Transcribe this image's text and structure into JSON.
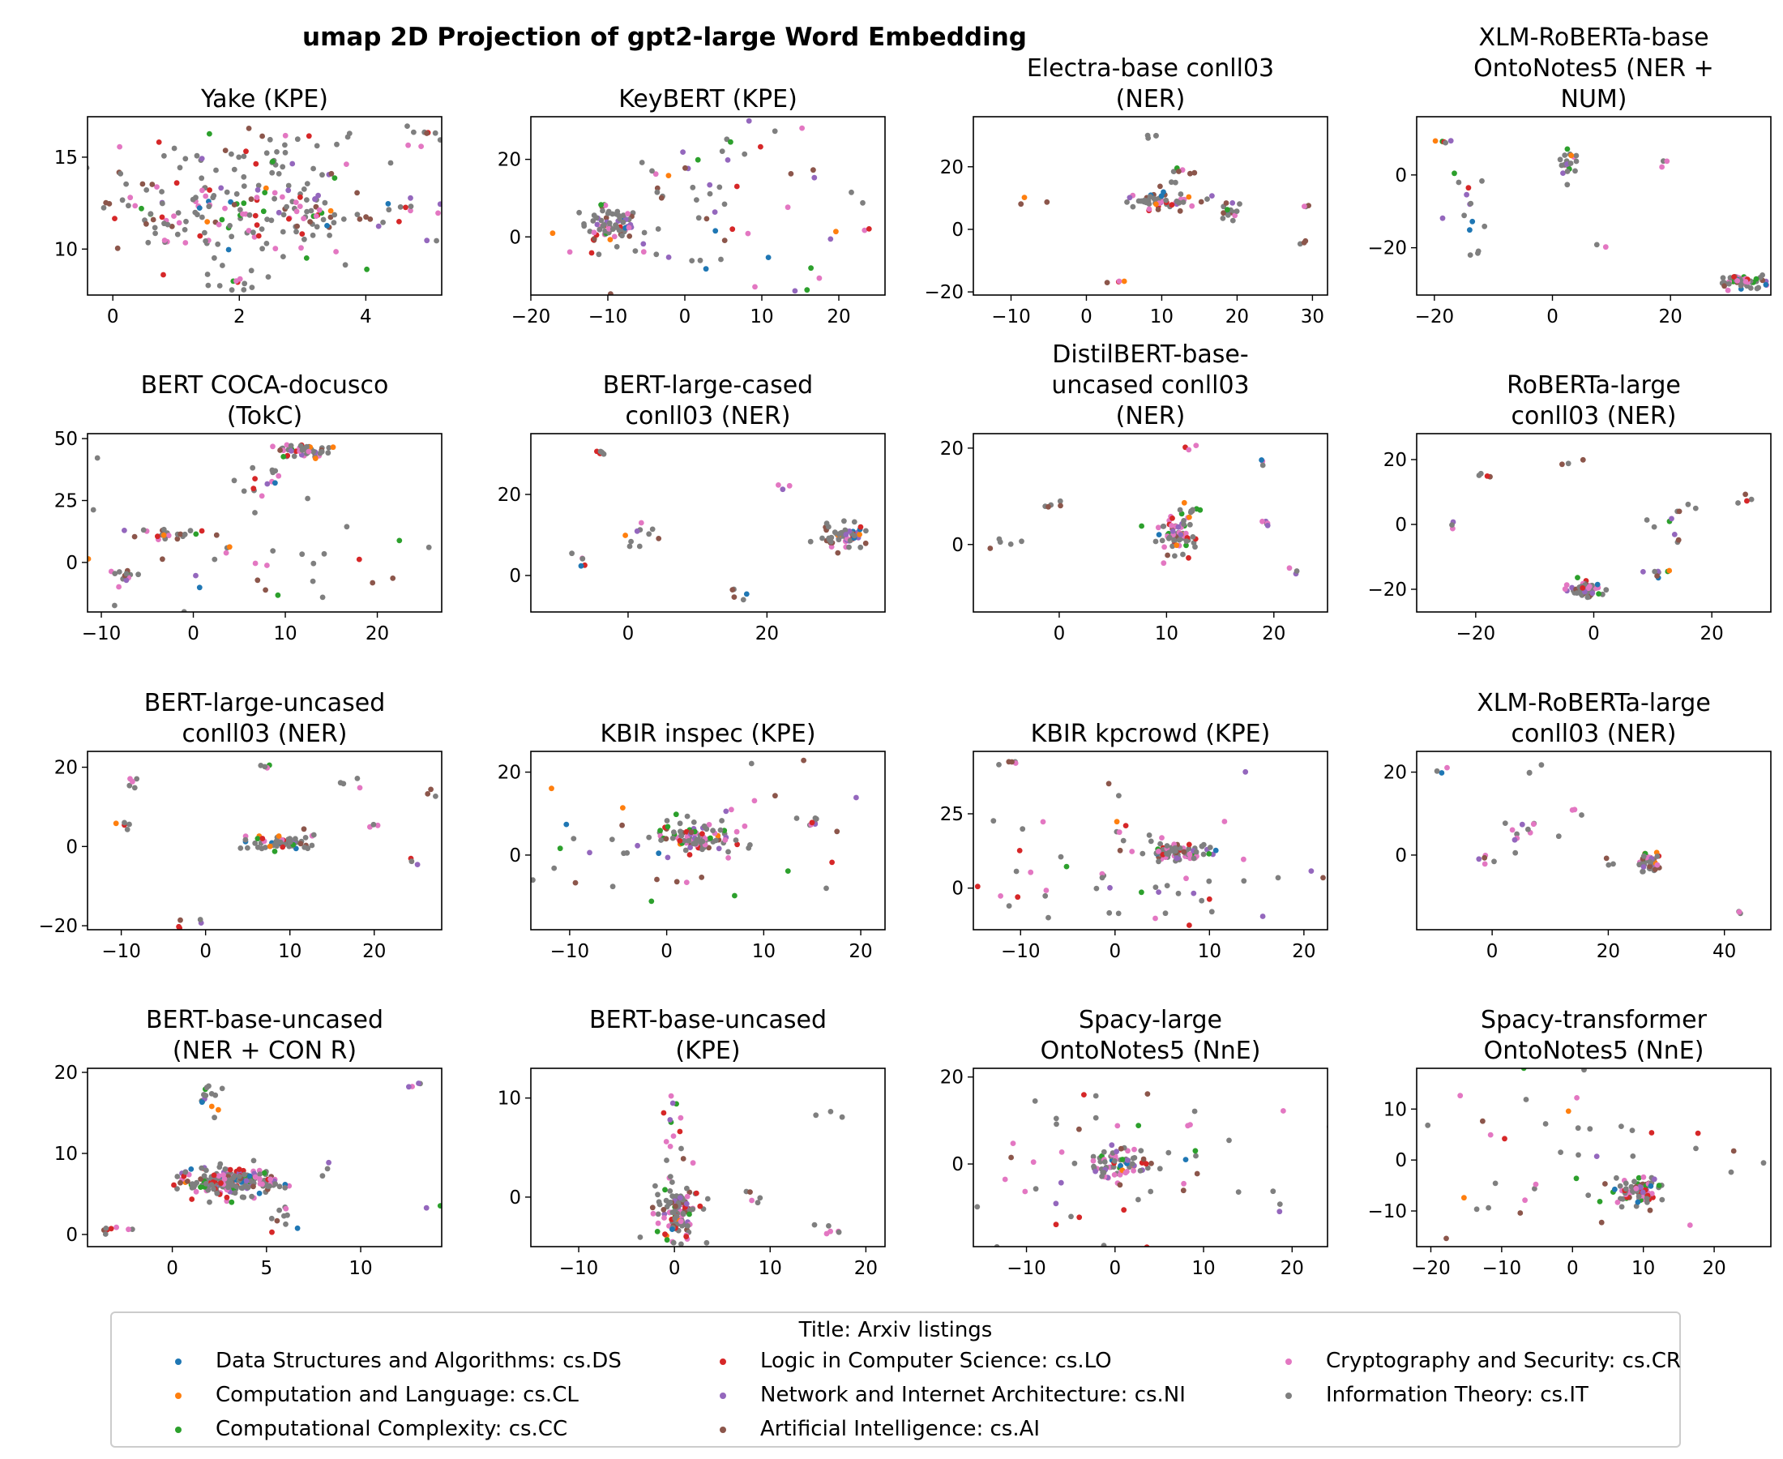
{
  "figure_title": "umap 2D Projection of gpt2-large Word Embedding",
  "legend": {
    "title": "Title: Arxiv listings",
    "items": [
      {
        "label": "Data Structures and Algorithms: cs.DS",
        "color": "#1f77b4"
      },
      {
        "label": "Computation and Language: cs.CL",
        "color": "#ff7f0e"
      },
      {
        "label": "Computational Complexity: cs.CC",
        "color": "#2ca02c"
      },
      {
        "label": "Logic in Computer Science: cs.LO",
        "color": "#d62728"
      },
      {
        "label": "Network and Internet Architecture: cs.NI",
        "color": "#9467bd"
      },
      {
        "label": "Artificial Intelligence: cs.AI",
        "color": "#8c564b"
      },
      {
        "label": "Cryptography and Security: cs.CR",
        "color": "#e377c2"
      },
      {
        "label": "Information Theory: cs.IT",
        "color": "#7f7f7f"
      }
    ]
  },
  "chart_data": [
    {
      "type": "scatter",
      "title": "Yake (KPE)",
      "xlim": [
        -0.4,
        5.2
      ],
      "ylim": [
        7.5,
        17.2
      ],
      "xticks": [
        0,
        2,
        4
      ],
      "yticks": [
        10,
        15
      ],
      "clusters": [
        [
          1.8,
          12.0,
          1.1,
          1.4,
          150
        ],
        [
          3.1,
          12.2,
          0.4,
          0.6,
          40
        ],
        [
          2.3,
          15.5,
          0.8,
          0.7,
          30
        ],
        [
          1.8,
          8.0,
          0.3,
          0.3,
          12
        ],
        [
          4.6,
          16.3,
          0.4,
          0.4,
          10
        ],
        [
          4.2,
          11.5,
          0.7,
          1.4,
          20
        ],
        [
          0.6,
          12.5,
          0.4,
          1.5,
          15
        ]
      ]
    },
    {
      "type": "scatter",
      "title": "KeyBERT (KPE)",
      "xlim": [
        -20,
        26
      ],
      "ylim": [
        -15,
        31
      ],
      "xticks": [
        -20,
        -10,
        0,
        10,
        20
      ],
      "yticks": [
        0,
        20
      ],
      "clusters": [
        [
          -10,
          3,
          2,
          2.5,
          80
        ],
        [
          4,
          8,
          12,
          12,
          70
        ]
      ]
    },
    {
      "type": "scatter",
      "title": "Electra-base conll03\n(NER)",
      "xlim": [
        -15,
        32
      ],
      "ylim": [
        -21,
        36
      ],
      "xticks": [
        -10,
        0,
        10,
        20,
        30
      ],
      "yticks": [
        -20,
        0,
        20
      ],
      "clusters": [
        [
          9,
          9,
          3,
          1.5,
          60
        ],
        [
          19,
          5,
          0.8,
          2,
          15
        ],
        [
          13,
          17,
          1,
          2,
          8
        ],
        [
          8,
          30,
          1,
          1,
          4
        ],
        [
          4,
          -17,
          1,
          0.5,
          4
        ],
        [
          29,
          8,
          0.5,
          0.5,
          3
        ],
        [
          -8,
          9,
          1,
          1,
          3
        ],
        [
          29,
          -4,
          0.5,
          0.5,
          3
        ]
      ]
    },
    {
      "type": "scatter",
      "title": "XLM-RoBERTa-base\nOntoNotes5 (NER +\nNUM)",
      "xlim": [
        -23,
        37
      ],
      "ylim": [
        -33,
        16
      ],
      "xticks": [
        -20,
        0,
        20
      ],
      "yticks": [
        -20,
        0
      ],
      "clusters": [
        [
          32,
          -29,
          2,
          0.8,
          60
        ],
        [
          3,
          3,
          1.5,
          2,
          20
        ],
        [
          -15,
          -10,
          2,
          6,
          15
        ],
        [
          -18,
          9,
          1,
          0.5,
          5
        ],
        [
          8,
          -20,
          1,
          1,
          2
        ],
        [
          19,
          4,
          1,
          1,
          3
        ]
      ]
    },
    {
      "type": "scatter",
      "title": "BERT COCA-docusco\n(TokC)",
      "xlim": [
        -11.5,
        27
      ],
      "ylim": [
        -20,
        52
      ],
      "xticks": [
        -10,
        0,
        10,
        20
      ],
      "yticks": [
        0,
        25,
        50
      ],
      "clusters": [
        [
          12,
          45,
          1.5,
          1.5,
          50
        ],
        [
          7,
          33,
          2,
          4,
          15
        ],
        [
          -2,
          11,
          2,
          1,
          20
        ],
        [
          -7,
          -5,
          1,
          2,
          10
        ],
        [
          5,
          0,
          10,
          12,
          40
        ]
      ]
    },
    {
      "type": "scatter",
      "title": "BERT-large-cased\nconll03 (NER)",
      "xlim": [
        -14,
        37
      ],
      "ylim": [
        -9,
        35
      ],
      "xticks": [
        0,
        20
      ],
      "yticks": [
        0,
        20
      ],
      "clusters": [
        [
          31,
          9.5,
          1.5,
          1.5,
          60
        ],
        [
          2,
          10,
          2,
          2,
          10
        ],
        [
          -4,
          30,
          1,
          0.5,
          6
        ],
        [
          -6,
          3,
          1,
          1,
          5
        ],
        [
          16,
          -5,
          1,
          1,
          5
        ],
        [
          22,
          22,
          0.5,
          0.5,
          3
        ]
      ]
    },
    {
      "type": "scatter",
      "title": "DistilBERT-base-\nuncased conll03\n(NER)",
      "xlim": [
        -8,
        25
      ],
      "ylim": [
        -14,
        23
      ],
      "xticks": [
        0,
        10,
        20
      ],
      "yticks": [
        0,
        20
      ],
      "clusters": [
        [
          11,
          2,
          1,
          2,
          70
        ],
        [
          12,
          7,
          0.6,
          0.6,
          10
        ],
        [
          -5,
          0,
          1,
          1,
          5
        ],
        [
          19.5,
          4.5,
          0.4,
          0.4,
          5
        ],
        [
          -1,
          8,
          1,
          0.5,
          5
        ],
        [
          12,
          20,
          0.5,
          0.5,
          3
        ],
        [
          22,
          -6,
          0.5,
          0.5,
          3
        ],
        [
          19,
          17,
          0.4,
          0.4,
          3
        ]
      ]
    },
    {
      "type": "scatter",
      "title": "RoBERTa-large\nconll03 (NER)",
      "xlim": [
        -30,
        30
      ],
      "ylim": [
        -27,
        28
      ],
      "xticks": [
        -20,
        0,
        20
      ],
      "yticks": [
        -20,
        0,
        20
      ],
      "clusters": [
        [
          -1,
          -20,
          1.5,
          1.5,
          50
        ],
        [
          14,
          4,
          2,
          2,
          8
        ],
        [
          11,
          -14,
          1,
          1,
          8
        ],
        [
          -24,
          0,
          0.5,
          0.5,
          3
        ],
        [
          -18,
          15,
          1,
          1,
          4
        ],
        [
          26,
          6,
          1,
          2,
          4
        ],
        [
          -4,
          19,
          1,
          1,
          3
        ],
        [
          14,
          -4,
          1,
          1,
          3
        ]
      ]
    },
    {
      "type": "scatter",
      "title": "BERT-large-uncased\nconll03 (NER)",
      "xlim": [
        -14,
        28
      ],
      "ylim": [
        -21,
        24
      ],
      "xticks": [
        -10,
        0,
        10,
        20
      ],
      "yticks": [
        -20,
        0,
        20
      ],
      "clusters": [
        [
          9,
          1,
          2,
          1,
          60
        ],
        [
          -10,
          5,
          0.5,
          1,
          5
        ],
        [
          -9,
          16,
          0.7,
          0.7,
          5
        ],
        [
          -2,
          -19,
          1,
          1,
          5
        ],
        [
          7,
          20,
          0.5,
          0.5,
          4
        ],
        [
          17,
          16,
          1,
          1,
          4
        ],
        [
          20,
          5,
          0.5,
          0.5,
          3
        ],
        [
          25,
          -4,
          0.5,
          0.5,
          3
        ],
        [
          27,
          14,
          0.5,
          0.5,
          3
        ]
      ]
    },
    {
      "type": "scatter",
      "title": "KBIR inspec (KPE)",
      "xlim": [
        -14,
        22.5
      ],
      "ylim": [
        -18,
        25
      ],
      "xticks": [
        -10,
        0,
        10,
        20
      ],
      "yticks": [
        0,
        20
      ],
      "clusters": [
        [
          3,
          4,
          2,
          1.5,
          90
        ],
        [
          2,
          2,
          12,
          12,
          60
        ],
        [
          15,
          8,
          0.5,
          1,
          6
        ]
      ]
    },
    {
      "type": "scatter",
      "title": "KBIR kpcrowd (KPE)",
      "xlim": [
        -15,
        22.5
      ],
      "ylim": [
        -14,
        46
      ],
      "xticks": [
        -10,
        0,
        10,
        20
      ],
      "yticks": [
        0,
        25
      ],
      "clusters": [
        [
          7,
          12,
          1.5,
          1.5,
          70
        ],
        [
          4,
          5,
          10,
          12,
          70
        ],
        [
          -11,
          42,
          1,
          0.5,
          5
        ]
      ]
    },
    {
      "type": "scatter",
      "title": "XLM-RoBERTa-large\nconll03 (NER)",
      "xlim": [
        -13,
        48
      ],
      "ylim": [
        -18,
        25
      ],
      "xticks": [
        0,
        20,
        40
      ],
      "yticks": [
        0,
        20
      ],
      "clusters": [
        [
          27,
          -2,
          1,
          1.5,
          40
        ],
        [
          6,
          7,
          2,
          3,
          12
        ],
        [
          -1,
          -1,
          1,
          1,
          5
        ],
        [
          -8,
          20,
          1,
          1,
          3
        ],
        [
          6,
          20,
          1,
          1,
          3
        ],
        [
          43,
          -14,
          0.5,
          0.5,
          3
        ],
        [
          20,
          -1,
          1,
          1,
          3
        ],
        [
          14,
          10,
          1,
          1,
          3
        ]
      ]
    },
    {
      "type": "scatter",
      "title": "BERT-base-uncased\n(NER + CON R)",
      "xlim": [
        -4.5,
        14.3
      ],
      "ylim": [
        -1.5,
        20.5
      ],
      "xticks": [
        0,
        5,
        10
      ],
      "yticks": [
        0,
        10,
        20
      ],
      "clusters": [
        [
          3,
          6.5,
          1.3,
          0.9,
          200
        ],
        [
          1.9,
          16.5,
          0.3,
          1.5,
          15
        ],
        [
          6,
          2,
          0.4,
          1,
          10
        ],
        [
          -3,
          0.5,
          0.5,
          0.3,
          8
        ],
        [
          12.8,
          18.5,
          0.3,
          0.2,
          4
        ],
        [
          14,
          3.2,
          0.2,
          0.2,
          2
        ],
        [
          8.3,
          9,
          0.3,
          0.3,
          2
        ]
      ]
    },
    {
      "type": "scatter",
      "title": "BERT-base-uncased\n(KPE)",
      "xlim": [
        -15,
        22
      ],
      "ylim": [
        -5,
        13
      ],
      "xticks": [
        -10,
        0,
        10,
        20
      ],
      "yticks": [
        0,
        10
      ],
      "clusters": [
        [
          0.5,
          -1.5,
          1.2,
          1.5,
          120
        ],
        [
          0,
          4,
          0.5,
          3,
          15
        ],
        [
          8.5,
          0,
          0.5,
          0.3,
          5
        ],
        [
          16,
          -3.5,
          1,
          0.3,
          6
        ],
        [
          17,
          8.5,
          1.5,
          0.5,
          3
        ],
        [
          -0.5,
          10,
          0.5,
          0.5,
          2
        ]
      ]
    },
    {
      "type": "scatter",
      "title": "Spacy-large\nOntoNotes5 (NnE)",
      "xlim": [
        -16,
        24
      ],
      "ylim": [
        -19,
        22
      ],
      "xticks": [
        -10,
        0,
        10,
        20
      ],
      "yticks": [
        0,
        20
      ],
      "clusters": [
        [
          0,
          0,
          2,
          2,
          70
        ],
        [
          3,
          1,
          11,
          11,
          60
        ]
      ]
    },
    {
      "type": "scatter",
      "title": "Spacy-transformer\nOntoNotes5 (NnE)",
      "xlim": [
        -22,
        28
      ],
      "ylim": [
        -17,
        18
      ],
      "xticks": [
        -20,
        -10,
        0,
        10,
        20
      ],
      "yticks": [
        -10,
        0,
        10
      ],
      "clusters": [
        [
          9,
          -6,
          1.5,
          1.5,
          80
        ],
        [
          0,
          0,
          14,
          11,
          50
        ]
      ]
    }
  ]
}
